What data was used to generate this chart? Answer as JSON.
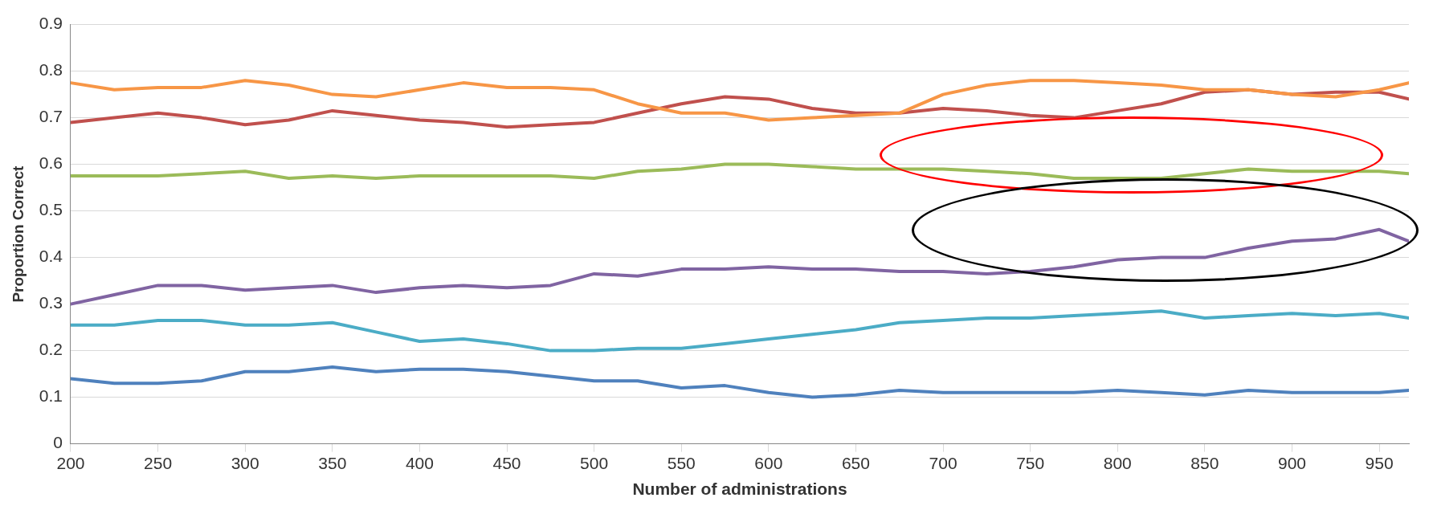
{
  "chart_data": {
    "type": "line",
    "xlabel": "Number of administrations",
    "ylabel": "Proportion Correct",
    "x": [
      200,
      225,
      250,
      275,
      300,
      325,
      350,
      375,
      400,
      425,
      450,
      475,
      500,
      525,
      550,
      575,
      600,
      625,
      650,
      675,
      700,
      725,
      750,
      775,
      800,
      825,
      850,
      875,
      900,
      925,
      950,
      967
    ],
    "xlim": [
      200,
      967
    ],
    "xticks": [
      200,
      250,
      300,
      350,
      400,
      450,
      500,
      550,
      600,
      650,
      700,
      750,
      800,
      850,
      900,
      950
    ],
    "ylim": [
      0,
      0.9
    ],
    "yticks": [
      0,
      0.1,
      0.2,
      0.3,
      0.4,
      0.5,
      0.6,
      0.7,
      0.8,
      0.9
    ],
    "grid": "y",
    "legend": false,
    "marker": "none",
    "line_style": "solid",
    "series": [
      {
        "color": "#f79646",
        "values": [
          0.775,
          0.76,
          0.765,
          0.765,
          0.78,
          0.77,
          0.75,
          0.745,
          0.76,
          0.775,
          0.765,
          0.765,
          0.76,
          0.73,
          0.71,
          0.71,
          0.695,
          0.7,
          0.705,
          0.71,
          0.75,
          0.77,
          0.78,
          0.78,
          0.775,
          0.77,
          0.76,
          0.76,
          0.75,
          0.745,
          0.76,
          0.775
        ]
      },
      {
        "color": "#c0504d",
        "values": [
          0.69,
          0.7,
          0.71,
          0.7,
          0.685,
          0.695,
          0.715,
          0.705,
          0.695,
          0.69,
          0.68,
          0.685,
          0.69,
          0.71,
          0.73,
          0.745,
          0.74,
          0.72,
          0.71,
          0.71,
          0.72,
          0.715,
          0.705,
          0.7,
          0.715,
          0.73,
          0.755,
          0.76,
          0.75,
          0.755,
          0.755,
          0.74
        ]
      },
      {
        "color": "#9bbb59",
        "values": [
          0.575,
          0.575,
          0.575,
          0.58,
          0.585,
          0.57,
          0.575,
          0.57,
          0.575,
          0.575,
          0.575,
          0.575,
          0.57,
          0.585,
          0.59,
          0.6,
          0.6,
          0.595,
          0.59,
          0.59,
          0.59,
          0.585,
          0.58,
          0.57,
          0.57,
          0.57,
          0.58,
          0.59,
          0.585,
          0.585,
          0.585,
          0.58
        ]
      },
      {
        "color": "#8064a2",
        "values": [
          0.3,
          0.32,
          0.34,
          0.34,
          0.33,
          0.335,
          0.34,
          0.325,
          0.335,
          0.34,
          0.335,
          0.34,
          0.365,
          0.36,
          0.375,
          0.375,
          0.38,
          0.375,
          0.375,
          0.37,
          0.37,
          0.365,
          0.37,
          0.38,
          0.395,
          0.4,
          0.4,
          0.42,
          0.435,
          0.44,
          0.46,
          0.435
        ]
      },
      {
        "color": "#4bacc6",
        "values": [
          0.255,
          0.255,
          0.265,
          0.265,
          0.255,
          0.255,
          0.26,
          0.24,
          0.22,
          0.225,
          0.215,
          0.2,
          0.2,
          0.205,
          0.205,
          0.215,
          0.225,
          0.235,
          0.245,
          0.26,
          0.265,
          0.27,
          0.27,
          0.275,
          0.28,
          0.285,
          0.27,
          0.275,
          0.28,
          0.275,
          0.28,
          0.27
        ]
      },
      {
        "color": "#4f81bd",
        "values": [
          0.14,
          0.13,
          0.13,
          0.135,
          0.155,
          0.155,
          0.165,
          0.155,
          0.16,
          0.16,
          0.155,
          0.145,
          0.135,
          0.135,
          0.12,
          0.125,
          0.11,
          0.1,
          0.105,
          0.115,
          0.11,
          0.11,
          0.11,
          0.11,
          0.115,
          0.11,
          0.105,
          0.115,
          0.11,
          0.11,
          0.11,
          0.115
        ]
      }
    ]
  }
}
